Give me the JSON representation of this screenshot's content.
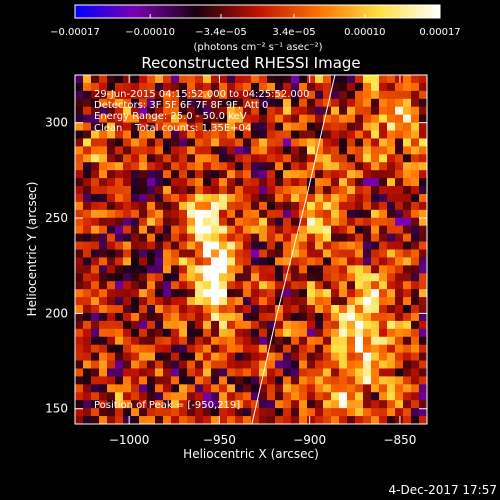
{
  "chart_data": {
    "type": "heatmap",
    "title": "Reconstructed RHESSI Image",
    "xlabel": "Heliocentric X (arcsec)",
    "ylabel": "Heliocentric Y (arcsec)",
    "xlim": [
      -1030,
      -835
    ],
    "ylim": [
      142,
      325
    ],
    "x_ticks": [
      -1000,
      -950,
      -900,
      -850
    ],
    "x_tick_labels": [
      "−1000",
      "−950",
      "−900",
      "−850"
    ],
    "y_ticks": [
      150,
      200,
      250,
      300
    ],
    "y_tick_labels": [
      "150",
      "200",
      "250",
      "300"
    ],
    "colorbar": {
      "range": [
        -0.00017,
        0.00017
      ],
      "ticks": [
        -0.00017,
        -0.0001,
        -3.4e-05,
        3.4e-05,
        0.0001,
        0.00017
      ],
      "tick_labels": [
        "−0.00017",
        "−0.00010",
        "−3.4e−05",
        "3.4e−05",
        "0.00010",
        "0.00017"
      ],
      "units": "(photons cm⁻² s⁻¹ asec⁻²)",
      "colors": [
        "#0000ff",
        "#7a00b0",
        "#1a0010",
        "#c01000",
        "#ff7000",
        "#ffe040",
        "#ffffff"
      ]
    },
    "annotations": [
      "29-Jun-2015 04:15:52.000 to 04:25:52.000",
      "Detectors: 3F 5F 6F 7F 8F 9F, Att 0",
      "Energy Range: 25.0 - 50.0 keV",
      "Clean    Total counts: 1.35E+04"
    ],
    "peak_label": "Position of Peak = [-950,219]",
    "peak_position": [
      -950,
      219
    ],
    "sources": [
      {
        "x": -953,
        "y": 220,
        "amplitude": 1.0,
        "sx": 8,
        "sy": 20
      },
      {
        "x": -958,
        "y": 250,
        "amplitude": 0.6,
        "sx": 10,
        "sy": 12
      },
      {
        "x": -870,
        "y": 195,
        "amplitude": 0.85,
        "sx": 12,
        "sy": 18
      },
      {
        "x": -895,
        "y": 255,
        "amplitude": 0.45,
        "sx": 10,
        "sy": 22
      },
      {
        "x": -850,
        "y": 300,
        "amplitude": 0.5,
        "sx": 14,
        "sy": 16
      },
      {
        "x": -880,
        "y": 160,
        "amplitude": 0.5,
        "sx": 14,
        "sy": 12
      },
      {
        "x": -1010,
        "y": 290,
        "amplitude": 0.35,
        "sx": 10,
        "sy": 10
      }
    ],
    "limb_curve": [
      [
        -932,
        142
      ],
      [
        -918,
        200
      ],
      [
        -902,
        260
      ],
      [
        -886,
        325
      ]
    ],
    "grid": false
  },
  "footer": {
    "timestamp": "4-Dec-2017 17:57"
  }
}
